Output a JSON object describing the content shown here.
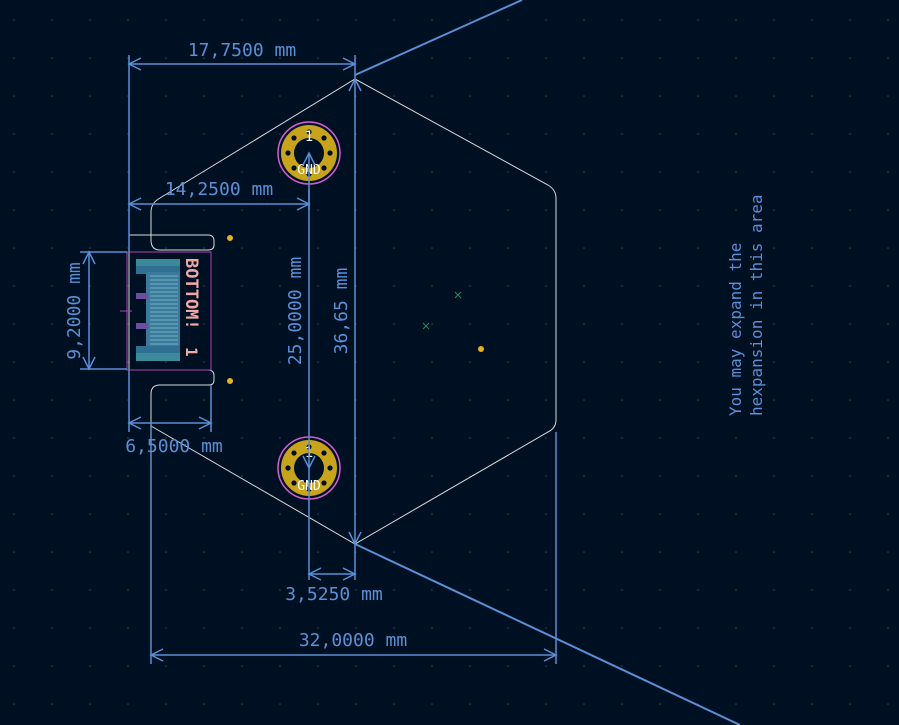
{
  "colors": {
    "background": "#001023",
    "dimension": "#5b8fd6",
    "outline": "#d9d9d9",
    "pad_gold": "#c8a31c",
    "pad_ring": "#d35ecf",
    "silk_pink": "#f2a7a7",
    "copper_teal": "#3a8a9a",
    "grid_dot": "#3d4d66"
  },
  "dimensions": {
    "d_top_width": "17,7500 mm",
    "d_mid_width": "14,2500 mm",
    "d_connector_height": "9,2000 mm",
    "d_connector_width": "6,5000 mm",
    "d_pad_spacing": "25,0000 mm",
    "d_total_height": "36,65 mm",
    "d_offset": "3,5250 mm",
    "d_bottom_width": "32,0000 mm"
  },
  "pads": [
    {
      "number": "1",
      "net": "GND"
    },
    {
      "number": "1",
      "net": "GND"
    }
  ],
  "connector": {
    "silk_text": "BOTTOM!",
    "pin_label": "1"
  },
  "note": {
    "line1": "You may expand the",
    "line2": "hexpansion in this area"
  }
}
